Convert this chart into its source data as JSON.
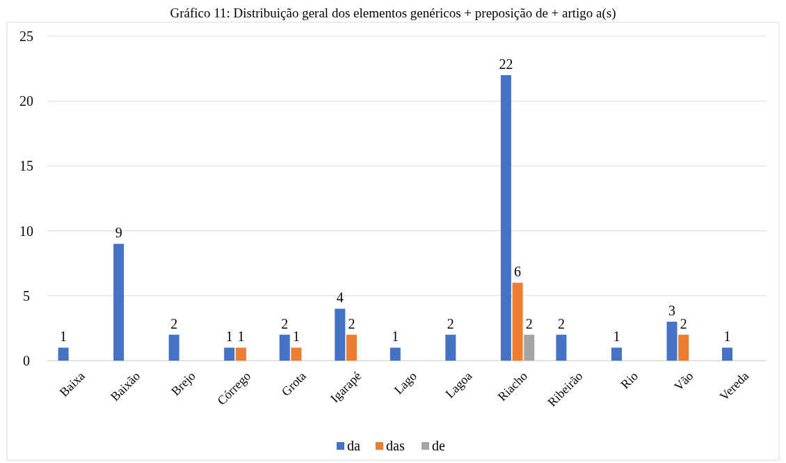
{
  "chart_data": {
    "type": "bar",
    "title": "Gráfico 11: Distribuição geral dos elementos genéricos + preposição de + artigo a(s)",
    "categories": [
      "Baixa",
      "Baixão",
      "Brejo",
      "Córrego",
      "Grota",
      "Igarapé",
      "Lago",
      "Lagoa",
      "Riacho",
      "Ribeirão",
      "Rio",
      "Vão",
      "Vereda"
    ],
    "series": [
      {
        "name": "da",
        "color": "#4472c4",
        "values": [
          1,
          9,
          2,
          1,
          2,
          4,
          1,
          2,
          22,
          2,
          1,
          3,
          1
        ]
      },
      {
        "name": "das",
        "color": "#ed7d31",
        "values": [
          null,
          null,
          null,
          1,
          1,
          2,
          null,
          null,
          6,
          null,
          null,
          2,
          null
        ]
      },
      {
        "name": "de",
        "color": "#a5a5a5",
        "values": [
          null,
          null,
          null,
          null,
          null,
          null,
          null,
          null,
          2,
          null,
          null,
          null,
          null
        ]
      }
    ],
    "ylim": [
      0,
      25
    ],
    "yticks": [
      0,
      5,
      10,
      15,
      20,
      25
    ],
    "grid": "y",
    "legend": "bottom",
    "data_labels": true
  }
}
